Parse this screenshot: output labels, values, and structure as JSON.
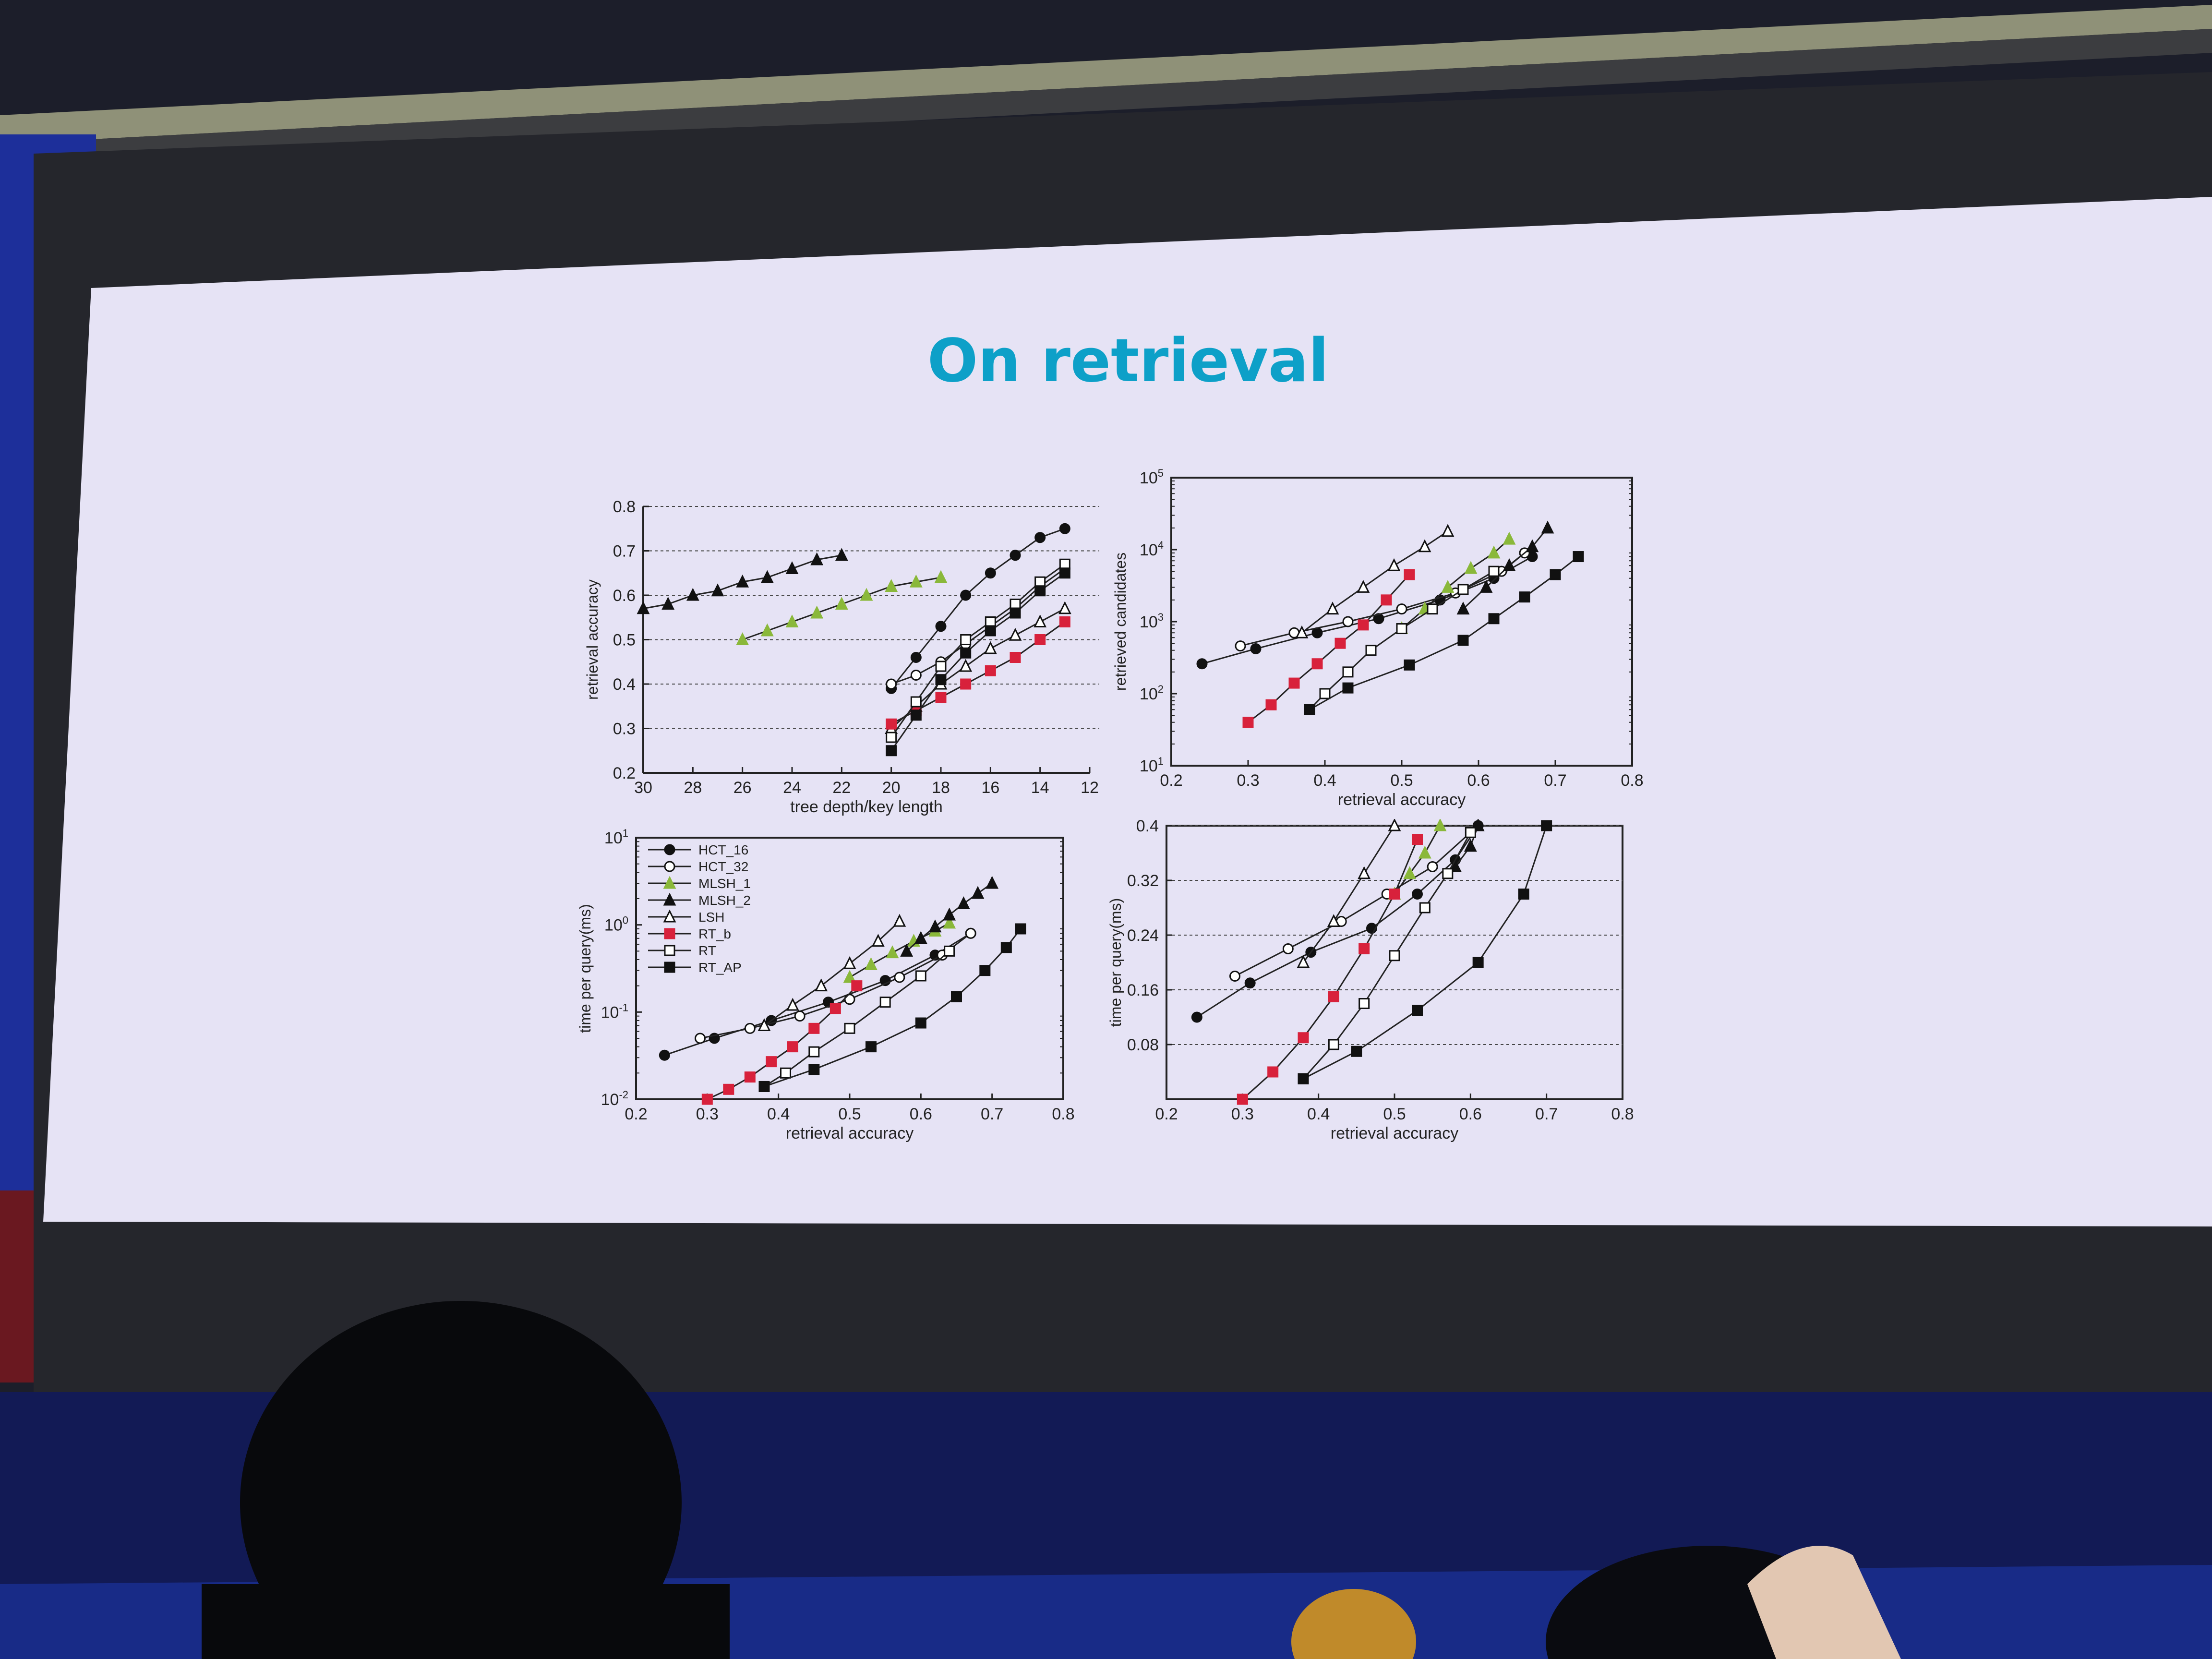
{
  "slide": {
    "title": "On retrieval"
  },
  "colors": {
    "title": "#0da0c8",
    "slide_bg": "#e6e3f5",
    "screen_frame": "#26272d",
    "black_series": "#111111",
    "mlsh_green": "#8ab83a",
    "rt_red": "#d8213b",
    "audience_bg": "#121a55"
  },
  "legend_entries": [
    "HCT_16",
    "HCT_32",
    "MLSH_1",
    "MLSH_2",
    "LSH",
    "RT_b",
    "RT",
    "RT_AP"
  ],
  "chart_data": [
    {
      "id": "accuracy_vs_depth",
      "type": "line",
      "xlabel": "tree depth/key length",
      "ylabel": "retrieval accuracy",
      "xlim": [
        30,
        12
      ],
      "x_reversed": true,
      "ylim": [
        0.2,
        0.8
      ],
      "xticks": [
        "30",
        "28",
        "26",
        "24",
        "22",
        "20",
        "18",
        "16",
        "14",
        "12"
      ],
      "yticks": [
        "0.2",
        "0.3",
        "0.4",
        "0.5",
        "0.6",
        "0.7",
        "0.8"
      ],
      "grid": "horizontal-dashed",
      "series": [
        {
          "name": "HCT_16",
          "marker": "filled-circle",
          "color": "black",
          "x": [
            20,
            19,
            18,
            17,
            16,
            15,
            14,
            13
          ],
          "y": [
            0.39,
            0.46,
            0.53,
            0.6,
            0.65,
            0.69,
            0.73,
            0.75
          ]
        },
        {
          "name": "HCT_32",
          "marker": "open-circle",
          "color": "black",
          "x": [
            20,
            19,
            18,
            17,
            16,
            15,
            14,
            13
          ],
          "y": [
            0.4,
            0.42,
            0.45,
            0.49,
            0.53,
            0.57,
            0.62,
            0.66
          ]
        },
        {
          "name": "MLSH_1",
          "marker": "filled-triangle",
          "color": "green",
          "x": [
            26,
            25,
            24,
            23,
            22,
            21,
            20,
            19,
            18
          ],
          "y": [
            0.5,
            0.52,
            0.54,
            0.56,
            0.58,
            0.6,
            0.62,
            0.63,
            0.64
          ]
        },
        {
          "name": "MLSH_2",
          "marker": "filled-triangle",
          "color": "black",
          "x": [
            30,
            29,
            28,
            27,
            26,
            25,
            24,
            23,
            22
          ],
          "y": [
            0.57,
            0.58,
            0.6,
            0.61,
            0.63,
            0.64,
            0.66,
            0.68,
            0.69
          ]
        },
        {
          "name": "LSH",
          "marker": "open-triangle",
          "color": "black",
          "x": [
            20,
            19,
            18,
            17,
            16,
            15,
            14,
            13
          ],
          "y": [
            0.3,
            0.35,
            0.4,
            0.44,
            0.48,
            0.51,
            0.54,
            0.57
          ]
        },
        {
          "name": "RT_b",
          "marker": "filled-square",
          "color": "red",
          "x": [
            20,
            19,
            18,
            17,
            16,
            15,
            14,
            13
          ],
          "y": [
            0.31,
            0.34,
            0.37,
            0.4,
            0.43,
            0.46,
            0.5,
            0.54
          ]
        },
        {
          "name": "RT",
          "marker": "open-square",
          "color": "black",
          "x": [
            20,
            19,
            18,
            17,
            16,
            15,
            14,
            13
          ],
          "y": [
            0.28,
            0.36,
            0.44,
            0.5,
            0.54,
            0.58,
            0.63,
            0.67
          ]
        },
        {
          "name": "RT_AP",
          "marker": "filled-square",
          "color": "black",
          "x": [
            20,
            19,
            18,
            17,
            16,
            15,
            14,
            13
          ],
          "y": [
            0.25,
            0.33,
            0.41,
            0.47,
            0.52,
            0.56,
            0.61,
            0.65
          ]
        }
      ]
    },
    {
      "id": "candidates_vs_accuracy",
      "type": "line",
      "xlabel": "retrieval accuracy",
      "ylabel": "retrieved candidates",
      "xlim": [
        0.2,
        0.8
      ],
      "ylim": [
        10,
        100000
      ],
      "yscale": "log",
      "xticks": [
        "0.2",
        "0.3",
        "0.4",
        "0.5",
        "0.6",
        "0.7",
        "0.8"
      ],
      "yticks": [
        "10^1",
        "10^2",
        "10^3",
        "10^4",
        "10^5"
      ],
      "series": [
        {
          "name": "HCT_16",
          "marker": "filled-circle",
          "color": "black",
          "x": [
            0.24,
            0.31,
            0.39,
            0.47,
            0.55,
            0.62,
            0.67
          ],
          "y": [
            260,
            420,
            700,
            1100,
            2000,
            4000,
            8000
          ]
        },
        {
          "name": "HCT_32",
          "marker": "open-circle",
          "color": "black",
          "x": [
            0.29,
            0.36,
            0.43,
            0.5,
            0.57,
            0.63,
            0.66
          ],
          "y": [
            460,
            700,
            1000,
            1500,
            2500,
            5000,
            9000
          ]
        },
        {
          "name": "MLSH_1",
          "marker": "filled-triangle",
          "color": "green",
          "x": [
            0.5,
            0.53,
            0.56,
            0.59,
            0.62,
            0.64
          ],
          "y": [
            800,
            1500,
            3000,
            5500,
            9000,
            14000
          ]
        },
        {
          "name": "MLSH_2",
          "marker": "filled-triangle",
          "color": "black",
          "x": [
            0.58,
            0.61,
            0.64,
            0.67,
            0.69
          ],
          "y": [
            1500,
            3000,
            6000,
            11000,
            20000
          ]
        },
        {
          "name": "LSH",
          "marker": "open-triangle",
          "color": "black",
          "x": [
            0.37,
            0.41,
            0.45,
            0.49,
            0.53,
            0.56
          ],
          "y": [
            700,
            1500,
            3000,
            6000,
            11000,
            18000
          ]
        },
        {
          "name": "RT_b",
          "marker": "filled-square",
          "color": "red",
          "x": [
            0.3,
            0.33,
            0.36,
            0.39,
            0.42,
            0.45,
            0.48,
            0.51
          ],
          "y": [
            40,
            70,
            140,
            260,
            500,
            900,
            2000,
            4500
          ]
        },
        {
          "name": "RT",
          "marker": "open-square",
          "color": "black",
          "x": [
            0.38,
            0.4,
            0.43,
            0.46,
            0.5,
            0.54,
            0.58,
            0.62
          ],
          "y": [
            60,
            100,
            200,
            400,
            800,
            1500,
            2800,
            5000
          ]
        },
        {
          "name": "RT_AP",
          "marker": "filled-square",
          "color": "black",
          "x": [
            0.38,
            0.43,
            0.51,
            0.58,
            0.62,
            0.66,
            0.7,
            0.73
          ],
          "y": [
            60,
            120,
            250,
            550,
            1100,
            2200,
            4500,
            8000
          ]
        }
      ]
    },
    {
      "id": "time_vs_accuracy_log",
      "type": "line",
      "xlabel": "retrieval accuracy",
      "ylabel": "time per query(ms)",
      "xlim": [
        0.2,
        0.8
      ],
      "ylim": [
        0.01,
        10
      ],
      "yscale": "log",
      "xticks": [
        "0.2",
        "0.3",
        "0.4",
        "0.5",
        "0.6",
        "0.7",
        "0.8"
      ],
      "yticks": [
        "10^-2",
        "10^-1",
        "10^0",
        "10^1"
      ],
      "legend": {
        "position": "top-left",
        "entries": [
          "HCT_16",
          "HCT_32",
          "MLSH_1",
          "MLSH_2",
          "LSH",
          "RT_b",
          "RT",
          "RT_AP"
        ]
      },
      "series": [
        {
          "name": "HCT_16",
          "marker": "filled-circle",
          "color": "black",
          "x": [
            0.24,
            0.31,
            0.39,
            0.47,
            0.55,
            0.62,
            0.67
          ],
          "y": [
            0.032,
            0.05,
            0.08,
            0.13,
            0.23,
            0.45,
            0.8
          ]
        },
        {
          "name": "HCT_32",
          "marker": "open-circle",
          "color": "black",
          "x": [
            0.29,
            0.36,
            0.43,
            0.5,
            0.57,
            0.63,
            0.67
          ],
          "y": [
            0.05,
            0.065,
            0.09,
            0.14,
            0.25,
            0.45,
            0.8
          ]
        },
        {
          "name": "MLSH_1",
          "marker": "filled-triangle",
          "color": "green",
          "x": [
            0.5,
            0.53,
            0.56,
            0.59,
            0.62,
            0.64
          ],
          "y": [
            0.25,
            0.35,
            0.48,
            0.65,
            0.85,
            1.05
          ]
        },
        {
          "name": "MLSH_2",
          "marker": "filled-triangle",
          "color": "black",
          "x": [
            0.58,
            0.6,
            0.62,
            0.64,
            0.66,
            0.68,
            0.7
          ],
          "y": [
            0.5,
            0.7,
            0.95,
            1.3,
            1.75,
            2.3,
            3.0
          ]
        },
        {
          "name": "LSH",
          "marker": "open-triangle",
          "color": "black",
          "x": [
            0.38,
            0.42,
            0.46,
            0.5,
            0.54,
            0.57
          ],
          "y": [
            0.07,
            0.12,
            0.2,
            0.36,
            0.65,
            1.1
          ]
        },
        {
          "name": "RT_b",
          "marker": "filled-square",
          "color": "red",
          "x": [
            0.3,
            0.33,
            0.36,
            0.39,
            0.42,
            0.45,
            0.48,
            0.51
          ],
          "y": [
            0.01,
            0.013,
            0.018,
            0.027,
            0.04,
            0.065,
            0.11,
            0.2
          ]
        },
        {
          "name": "RT",
          "marker": "open-square",
          "color": "black",
          "x": [
            0.38,
            0.41,
            0.45,
            0.5,
            0.55,
            0.6,
            0.64
          ],
          "y": [
            0.014,
            0.02,
            0.035,
            0.065,
            0.13,
            0.26,
            0.5
          ]
        },
        {
          "name": "RT_AP",
          "marker": "filled-square",
          "color": "black",
          "x": [
            0.38,
            0.45,
            0.53,
            0.6,
            0.65,
            0.69,
            0.72,
            0.74
          ],
          "y": [
            0.014,
            0.022,
            0.04,
            0.075,
            0.15,
            0.3,
            0.55,
            0.9
          ]
        }
      ]
    },
    {
      "id": "time_vs_accuracy_linear",
      "type": "line",
      "xlabel": "retrieval accuracy",
      "ylabel": "time per query(ms)",
      "xlim": [
        0.2,
        0.8
      ],
      "ylim": [
        0,
        0.4
      ],
      "xticks": [
        "0.2",
        "0.3",
        "0.4",
        "0.5",
        "0.6",
        "0.7",
        "0.8"
      ],
      "yticks": [
        "0.08",
        "0.16",
        "0.24",
        "0.32",
        "0.4"
      ],
      "grid": "horizontal-dashed",
      "series": [
        {
          "name": "HCT_16",
          "marker": "filled-circle",
          "color": "black",
          "x": [
            0.24,
            0.31,
            0.39,
            0.47,
            0.53,
            0.58,
            0.61
          ],
          "y": [
            0.12,
            0.17,
            0.215,
            0.25,
            0.3,
            0.35,
            0.4
          ]
        },
        {
          "name": "HCT_32",
          "marker": "open-circle",
          "color": "black",
          "x": [
            0.29,
            0.36,
            0.43,
            0.49,
            0.55,
            0.6
          ],
          "y": [
            0.18,
            0.22,
            0.26,
            0.3,
            0.34,
            0.39
          ]
        },
        {
          "name": "MLSH_1",
          "marker": "filled-triangle",
          "color": "green",
          "x": [
            0.5,
            0.52,
            0.54,
            0.56
          ],
          "y": [
            0.3,
            0.33,
            0.36,
            0.4
          ]
        },
        {
          "name": "MLSH_2",
          "marker": "filled-triangle",
          "color": "black",
          "x": [
            0.58,
            0.6,
            0.61
          ],
          "y": [
            0.34,
            0.37,
            0.4
          ]
        },
        {
          "name": "LSH",
          "marker": "open-triangle",
          "color": "black",
          "x": [
            0.38,
            0.42,
            0.46,
            0.5
          ],
          "y": [
            0.2,
            0.26,
            0.33,
            0.4
          ]
        },
        {
          "name": "RT_b",
          "marker": "filled-square",
          "color": "red",
          "x": [
            0.3,
            0.34,
            0.38,
            0.42,
            0.46,
            0.5,
            0.53
          ],
          "y": [
            0.0,
            0.04,
            0.09,
            0.15,
            0.22,
            0.3,
            0.38
          ]
        },
        {
          "name": "RT",
          "marker": "open-square",
          "color": "black",
          "x": [
            0.38,
            0.42,
            0.46,
            0.5,
            0.54,
            0.57,
            0.6
          ],
          "y": [
            0.03,
            0.08,
            0.14,
            0.21,
            0.28,
            0.33,
            0.39
          ]
        },
        {
          "name": "RT_AP",
          "marker": "filled-square",
          "color": "black",
          "x": [
            0.38,
            0.45,
            0.53,
            0.61,
            0.67,
            0.7
          ],
          "y": [
            0.03,
            0.07,
            0.13,
            0.2,
            0.3,
            0.4
          ]
        }
      ]
    }
  ]
}
